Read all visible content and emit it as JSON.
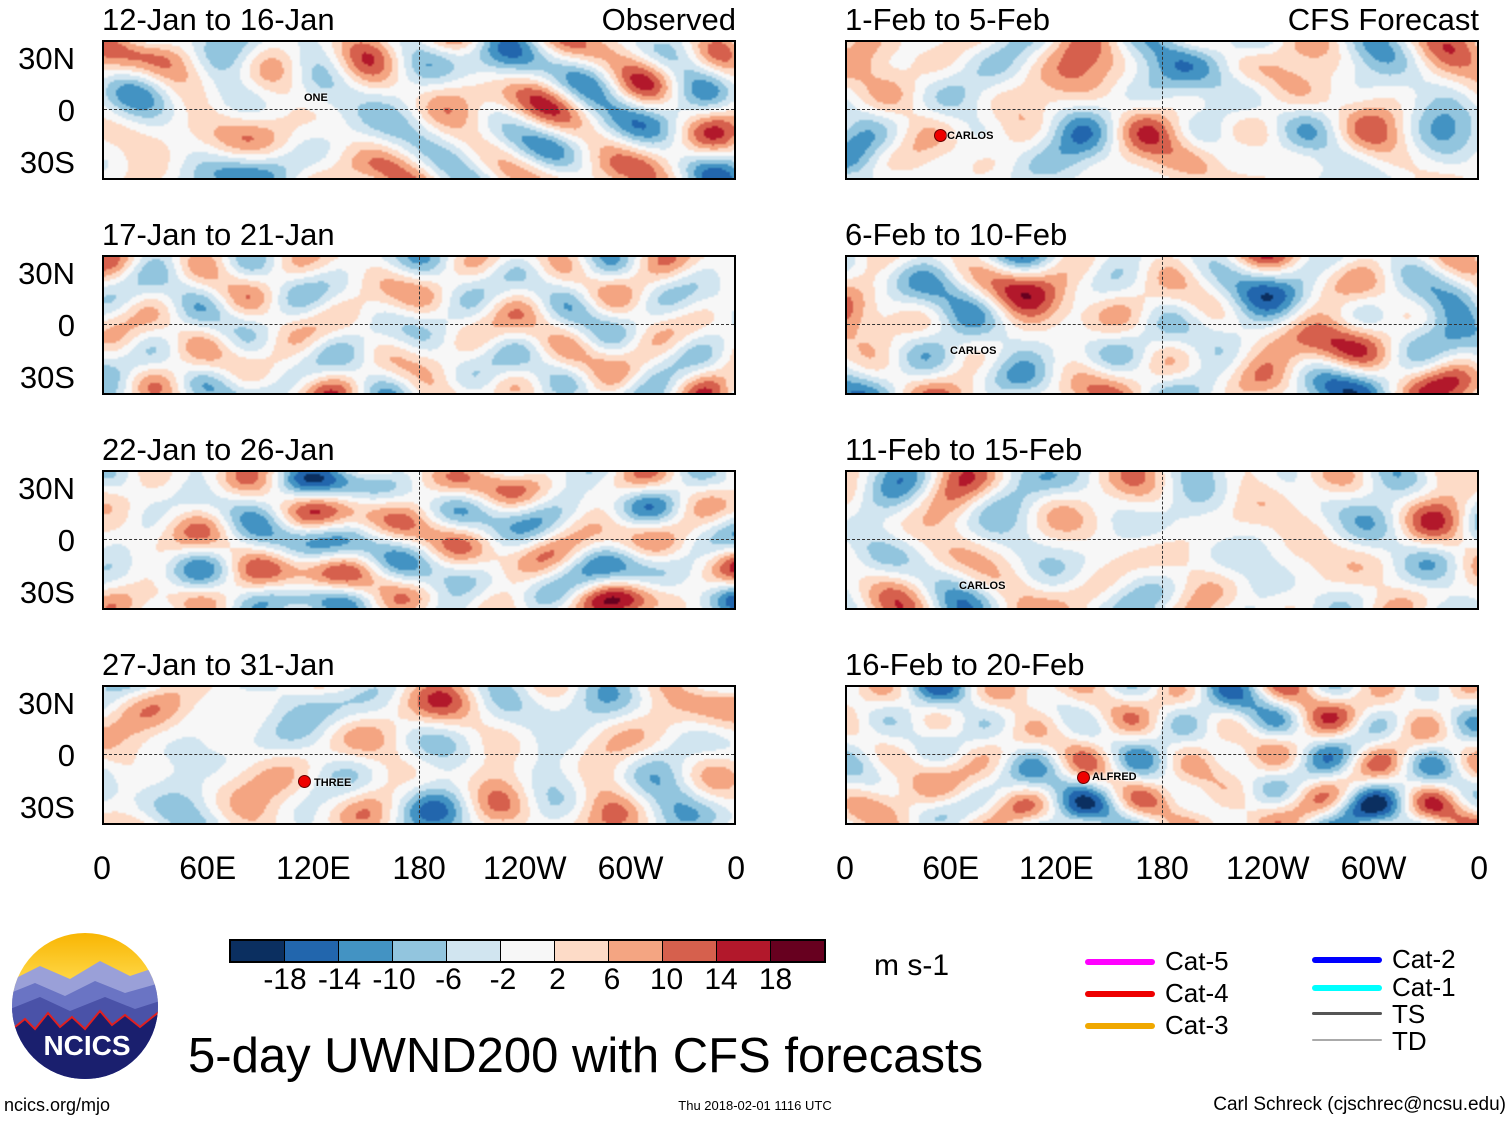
{
  "header": {
    "observed_label": "Observed",
    "forecast_label": "CFS Forecast"
  },
  "lat_labels": [
    "30N",
    "0",
    "30S"
  ],
  "lon_labels": [
    "0",
    "60E",
    "120E",
    "180",
    "120W",
    "60W",
    "0"
  ],
  "panels": [
    {
      "title": "12-Jan to 16-Jan",
      "group": "observed",
      "storms": [
        "ONE"
      ]
    },
    {
      "title": "17-Jan to 21-Jan",
      "group": "observed",
      "storms": []
    },
    {
      "title": "22-Jan to 26-Jan",
      "group": "observed",
      "storms": []
    },
    {
      "title": "27-Jan to 31-Jan",
      "group": "observed",
      "storms": [
        "THREE"
      ]
    },
    {
      "title": "1-Feb to 5-Feb",
      "group": "forecast",
      "storms": [
        "CARLOS"
      ]
    },
    {
      "title": "6-Feb to 10-Feb",
      "group": "forecast",
      "storms": [
        "CARLOS"
      ]
    },
    {
      "title": "11-Feb to 15-Feb",
      "group": "forecast",
      "storms": [
        "CARLOS"
      ]
    },
    {
      "title": "16-Feb to 20-Feb",
      "group": "forecast",
      "storms": [
        "ALFRED"
      ]
    }
  ],
  "colorbar": {
    "labels": [
      "-18",
      "-14",
      "-10",
      "-6",
      "-2",
      "2",
      "6",
      "10",
      "14",
      "18"
    ],
    "colors": [
      "#0b2f60",
      "#2266ad",
      "#4393c3",
      "#92c5de",
      "#d1e5f0",
      "#f7f7f7",
      "#fddbc7",
      "#f4a582",
      "#d6604d",
      "#b2182b",
      "#67001f"
    ],
    "units": "m s-1"
  },
  "legend": [
    {
      "label": "Cat-5",
      "color": "#ff00ff"
    },
    {
      "label": "Cat-4",
      "color": "#ee0000"
    },
    {
      "label": "Cat-3",
      "color": "#f0a800"
    },
    {
      "label": "Cat-2",
      "color": "#0000ff"
    },
    {
      "label": "Cat-1",
      "color": "#00ffff"
    },
    {
      "label": "TS",
      "color": "#555555"
    },
    {
      "label": "TD",
      "color": "#aaaaaa"
    }
  ],
  "logo_text": "NCICS",
  "title": "5-day UWND200 with CFS forecasts",
  "footer": {
    "url": "ncics.org/mjo",
    "timestamp": "Thu 2018-02-01 1116 UTC",
    "credit": "Carl Schreck (cjschrec@ncsu.edu)"
  }
}
